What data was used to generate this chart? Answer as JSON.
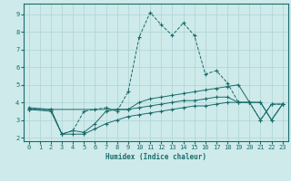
{
  "xlabel": "Humidex (Indice chaleur)",
  "background_color": "#ceeaea",
  "grid_color": "#aed4d4",
  "line_color": "#1a6b6b",
  "xlim": [
    -0.5,
    23.5
  ],
  "ylim": [
    1.8,
    9.6
  ],
  "yticks": [
    2,
    3,
    4,
    5,
    6,
    7,
    8,
    9
  ],
  "xticks": [
    0,
    1,
    2,
    3,
    4,
    5,
    6,
    7,
    8,
    9,
    10,
    11,
    12,
    13,
    14,
    15,
    16,
    17,
    18,
    19,
    20,
    21,
    22,
    23
  ],
  "series": [
    {
      "x": [
        0,
        2,
        3,
        4,
        5,
        6,
        7,
        8,
        9,
        10,
        11,
        12,
        13,
        14,
        15,
        16,
        17,
        18,
        19,
        20,
        21,
        22,
        23
      ],
      "y": [
        3.6,
        3.6,
        2.2,
        2.4,
        3.5,
        3.6,
        3.7,
        3.5,
        4.6,
        7.7,
        9.1,
        8.4,
        7.8,
        8.5,
        7.8,
        5.6,
        5.8,
        5.1,
        4.0,
        4.0,
        3.0,
        3.9,
        3.9
      ],
      "linestyle": "--",
      "marker": "+"
    },
    {
      "x": [
        0,
        2,
        8,
        9,
        10,
        11,
        12,
        13,
        14,
        15,
        16,
        17,
        18,
        19,
        20,
        21,
        22,
        23
      ],
      "y": [
        3.7,
        3.6,
        3.6,
        3.6,
        4.0,
        4.2,
        4.3,
        4.4,
        4.5,
        4.6,
        4.7,
        4.8,
        4.9,
        5.0,
        4.0,
        4.0,
        3.0,
        3.9
      ],
      "linestyle": "-",
      "marker": "+"
    },
    {
      "x": [
        0,
        2,
        3,
        4,
        5,
        6,
        7,
        8,
        9,
        10,
        11,
        12,
        13,
        14,
        15,
        16,
        17,
        18,
        19,
        20,
        21,
        22,
        23
      ],
      "y": [
        3.6,
        3.6,
        2.2,
        2.4,
        2.3,
        2.8,
        3.5,
        3.6,
        3.6,
        3.7,
        3.8,
        3.9,
        4.0,
        4.1,
        4.1,
        4.2,
        4.3,
        4.3,
        4.0,
        4.0,
        3.0,
        3.9,
        3.9
      ],
      "linestyle": "-",
      "marker": "+"
    },
    {
      "x": [
        0,
        2,
        3,
        4,
        5,
        6,
        7,
        8,
        9,
        10,
        11,
        12,
        13,
        14,
        15,
        16,
        17,
        18,
        19,
        20,
        21,
        22,
        23
      ],
      "y": [
        3.6,
        3.5,
        2.2,
        2.2,
        2.2,
        2.5,
        2.8,
        3.0,
        3.2,
        3.3,
        3.4,
        3.5,
        3.6,
        3.7,
        3.8,
        3.8,
        3.9,
        4.0,
        4.0,
        4.0,
        4.0,
        3.0,
        3.9
      ],
      "linestyle": "-",
      "marker": "+"
    }
  ]
}
